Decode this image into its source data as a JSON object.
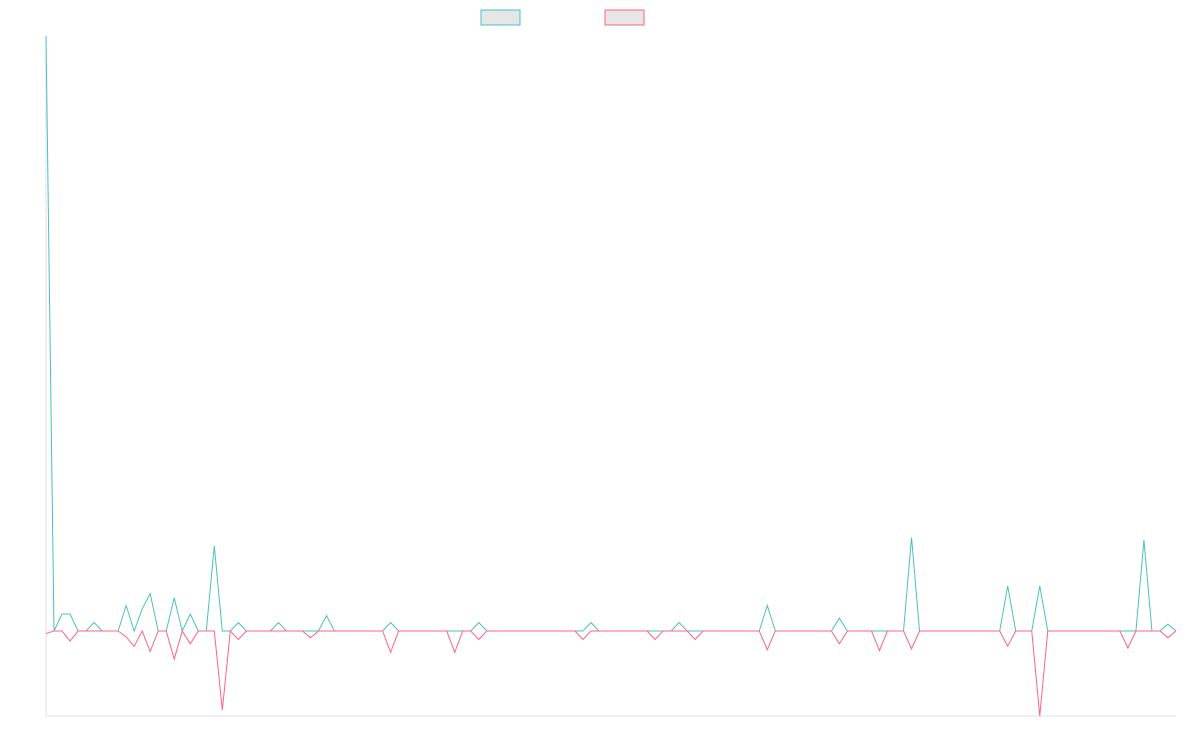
{
  "chart_data": {
    "type": "line",
    "categories": [
      null,
      null,
      null,
      null,
      null,
      null,
      null,
      null,
      null,
      null,
      null,
      null,
      null,
      null,
      null,
      null,
      null,
      null,
      null,
      null,
      null,
      null,
      null,
      null,
      null,
      null,
      null,
      null,
      null,
      null,
      null,
      null,
      null,
      null,
      null,
      null,
      null,
      null,
      null,
      null,
      null,
      null,
      null,
      null,
      null,
      null,
      null,
      null,
      null,
      null,
      null,
      null,
      null,
      null,
      null,
      null,
      null,
      null,
      null,
      null,
      null,
      null,
      null,
      null,
      null,
      null,
      null,
      null,
      null,
      null,
      null,
      null,
      null,
      null,
      null,
      null,
      null,
      null,
      null,
      null,
      null,
      null,
      null,
      null,
      null,
      null,
      null,
      null,
      null,
      null,
      null,
      null,
      null,
      null,
      null,
      null,
      null,
      null,
      null,
      null,
      null,
      null,
      null,
      null,
      null,
      null,
      null,
      null,
      null,
      null,
      null,
      null,
      null,
      null,
      null,
      null,
      null,
      null,
      null,
      null,
      null,
      null,
      null,
      null,
      null,
      null,
      null,
      null,
      null,
      null,
      null,
      null,
      null,
      null,
      null,
      null,
      null,
      null,
      null,
      null,
      null,
      null
    ],
    "series": [
      {
        "color": "#4bc0c0",
        "values": [
          70,
          0,
          2,
          2,
          0,
          0,
          1,
          0,
          0,
          0,
          3,
          0,
          2.6,
          4.4,
          0,
          0,
          3.9,
          0,
          2,
          0,
          0,
          10,
          0,
          0,
          1,
          0,
          0,
          0,
          0,
          1,
          0,
          0,
          0,
          0,
          0,
          1.8,
          0,
          0,
          0,
          0,
          0,
          0,
          0,
          1,
          0,
          0,
          0,
          0,
          0,
          0,
          0,
          0,
          0,
          0,
          1,
          0,
          0,
          0,
          0,
          0,
          0,
          0,
          0,
          0,
          0,
          0,
          0,
          0,
          1,
          0,
          0,
          0,
          0,
          0,
          0,
          0,
          0,
          0,
          0,
          1,
          0,
          0,
          0,
          0,
          0,
          0,
          0,
          0,
          0,
          0,
          3,
          0,
          0,
          0,
          0,
          0,
          0,
          0,
          0,
          1.5,
          0,
          0,
          0,
          0,
          0,
          0,
          0,
          0,
          11,
          0,
          0,
          0,
          0,
          0,
          0,
          0,
          0,
          0,
          0,
          0,
          5.3,
          0,
          0,
          0,
          5.3,
          0,
          0,
          0,
          0,
          0,
          0,
          0,
          0,
          0,
          0,
          0,
          0,
          10.7,
          0,
          0,
          0.8,
          0
        ]
      },
      {
        "color": "#ff6384",
        "values": [
          -0.3,
          0,
          0,
          -1.2,
          0,
          0,
          0,
          0,
          0,
          0,
          -0.7,
          -1.8,
          0,
          -2.4,
          0,
          0,
          -3.3,
          0,
          -1.5,
          0,
          0,
          0,
          -9.3,
          0,
          -1,
          0,
          0,
          0,
          0,
          0,
          0,
          0,
          0,
          -0.8,
          0,
          0,
          0,
          0,
          0,
          0,
          0,
          0,
          0,
          -2.5,
          0,
          0,
          0,
          0,
          0,
          0,
          0,
          -2.5,
          0,
          0,
          -1,
          0,
          0,
          0,
          0,
          0,
          0,
          0,
          0,
          0,
          0,
          0,
          0,
          -1,
          0,
          0,
          0,
          0,
          0,
          0,
          0,
          0,
          -1,
          0,
          0,
          0,
          0,
          -1,
          0,
          0,
          0,
          0,
          0,
          0,
          0,
          0,
          -2.2,
          0,
          0,
          0,
          0,
          0,
          0,
          0,
          0,
          -1.5,
          0,
          0,
          0,
          0,
          -2.3,
          0,
          0,
          0,
          -2.1,
          0,
          0,
          0,
          0,
          0,
          0,
          0,
          0,
          0,
          0,
          0,
          -1.8,
          0,
          0,
          0,
          -10,
          0,
          0,
          0,
          0,
          0,
          0,
          0,
          0,
          0,
          0,
          -2,
          0,
          0,
          0,
          0,
          -0.8,
          0
        ]
      }
    ],
    "ylim": [
      -10,
      70
    ]
  }
}
